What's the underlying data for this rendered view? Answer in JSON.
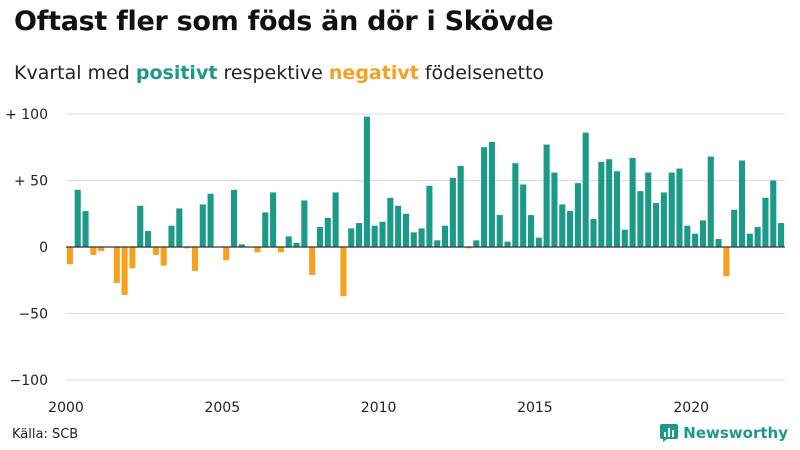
{
  "title": "Oftast fler som föds än dör i Skövde",
  "subtitle": {
    "prefix": "Kvartal med ",
    "positive_word": "positivt",
    "middle": " respektive ",
    "negative_word": "negativt",
    "suffix": " födelsenetto"
  },
  "source": "Källa: SCB",
  "brand": {
    "name": "Newsworthy",
    "icon": "newsworthy-logo-icon"
  },
  "colors": {
    "positive": "#1b9a8a",
    "negative": "#f5a01e",
    "grid": "#dddddd",
    "axis": "#333333"
  },
  "chart_data": {
    "type": "bar",
    "title": "Oftast fler som föds än dör i Skövde",
    "xlabel": "",
    "ylabel": "",
    "ylim": [
      -100,
      100
    ],
    "xlim": [
      2000,
      2023
    ],
    "y_ticks": [
      100,
      50,
      0,
      -50,
      -100
    ],
    "y_tick_labels": [
      "+ 100",
      "+  50",
      "0",
      "−50",
      "−100"
    ],
    "x_ticks": [
      2000,
      2005,
      2010,
      2015,
      2020
    ],
    "x_tick_labels": [
      "2000",
      "2005",
      "2010",
      "2015",
      "2020"
    ],
    "grid": true,
    "start_year": 2000,
    "start_quarter": 1,
    "values": [
      -13,
      43,
      27,
      -6,
      -3,
      0,
      -27,
      -36,
      -16,
      31,
      12,
      -6,
      -14,
      16,
      29,
      -1,
      -18,
      32,
      40,
      0,
      -10,
      43,
      2,
      0,
      -4,
      26,
      41,
      -4,
      8,
      3,
      35,
      -21,
      15,
      22,
      41,
      -37,
      14,
      18,
      98,
      16,
      19,
      37,
      31,
      25,
      11,
      14,
      46,
      5,
      16,
      52,
      61,
      -1,
      5,
      75,
      79,
      24,
      4,
      63,
      47,
      24,
      7,
      77,
      56,
      32,
      27,
      48,
      86,
      21,
      64,
      66,
      57,
      13,
      67,
      42,
      56,
      33,
      41,
      56,
      59,
      16,
      10,
      20,
      68,
      6,
      -22,
      28,
      65,
      10,
      15,
      37,
      50,
      18
    ]
  }
}
